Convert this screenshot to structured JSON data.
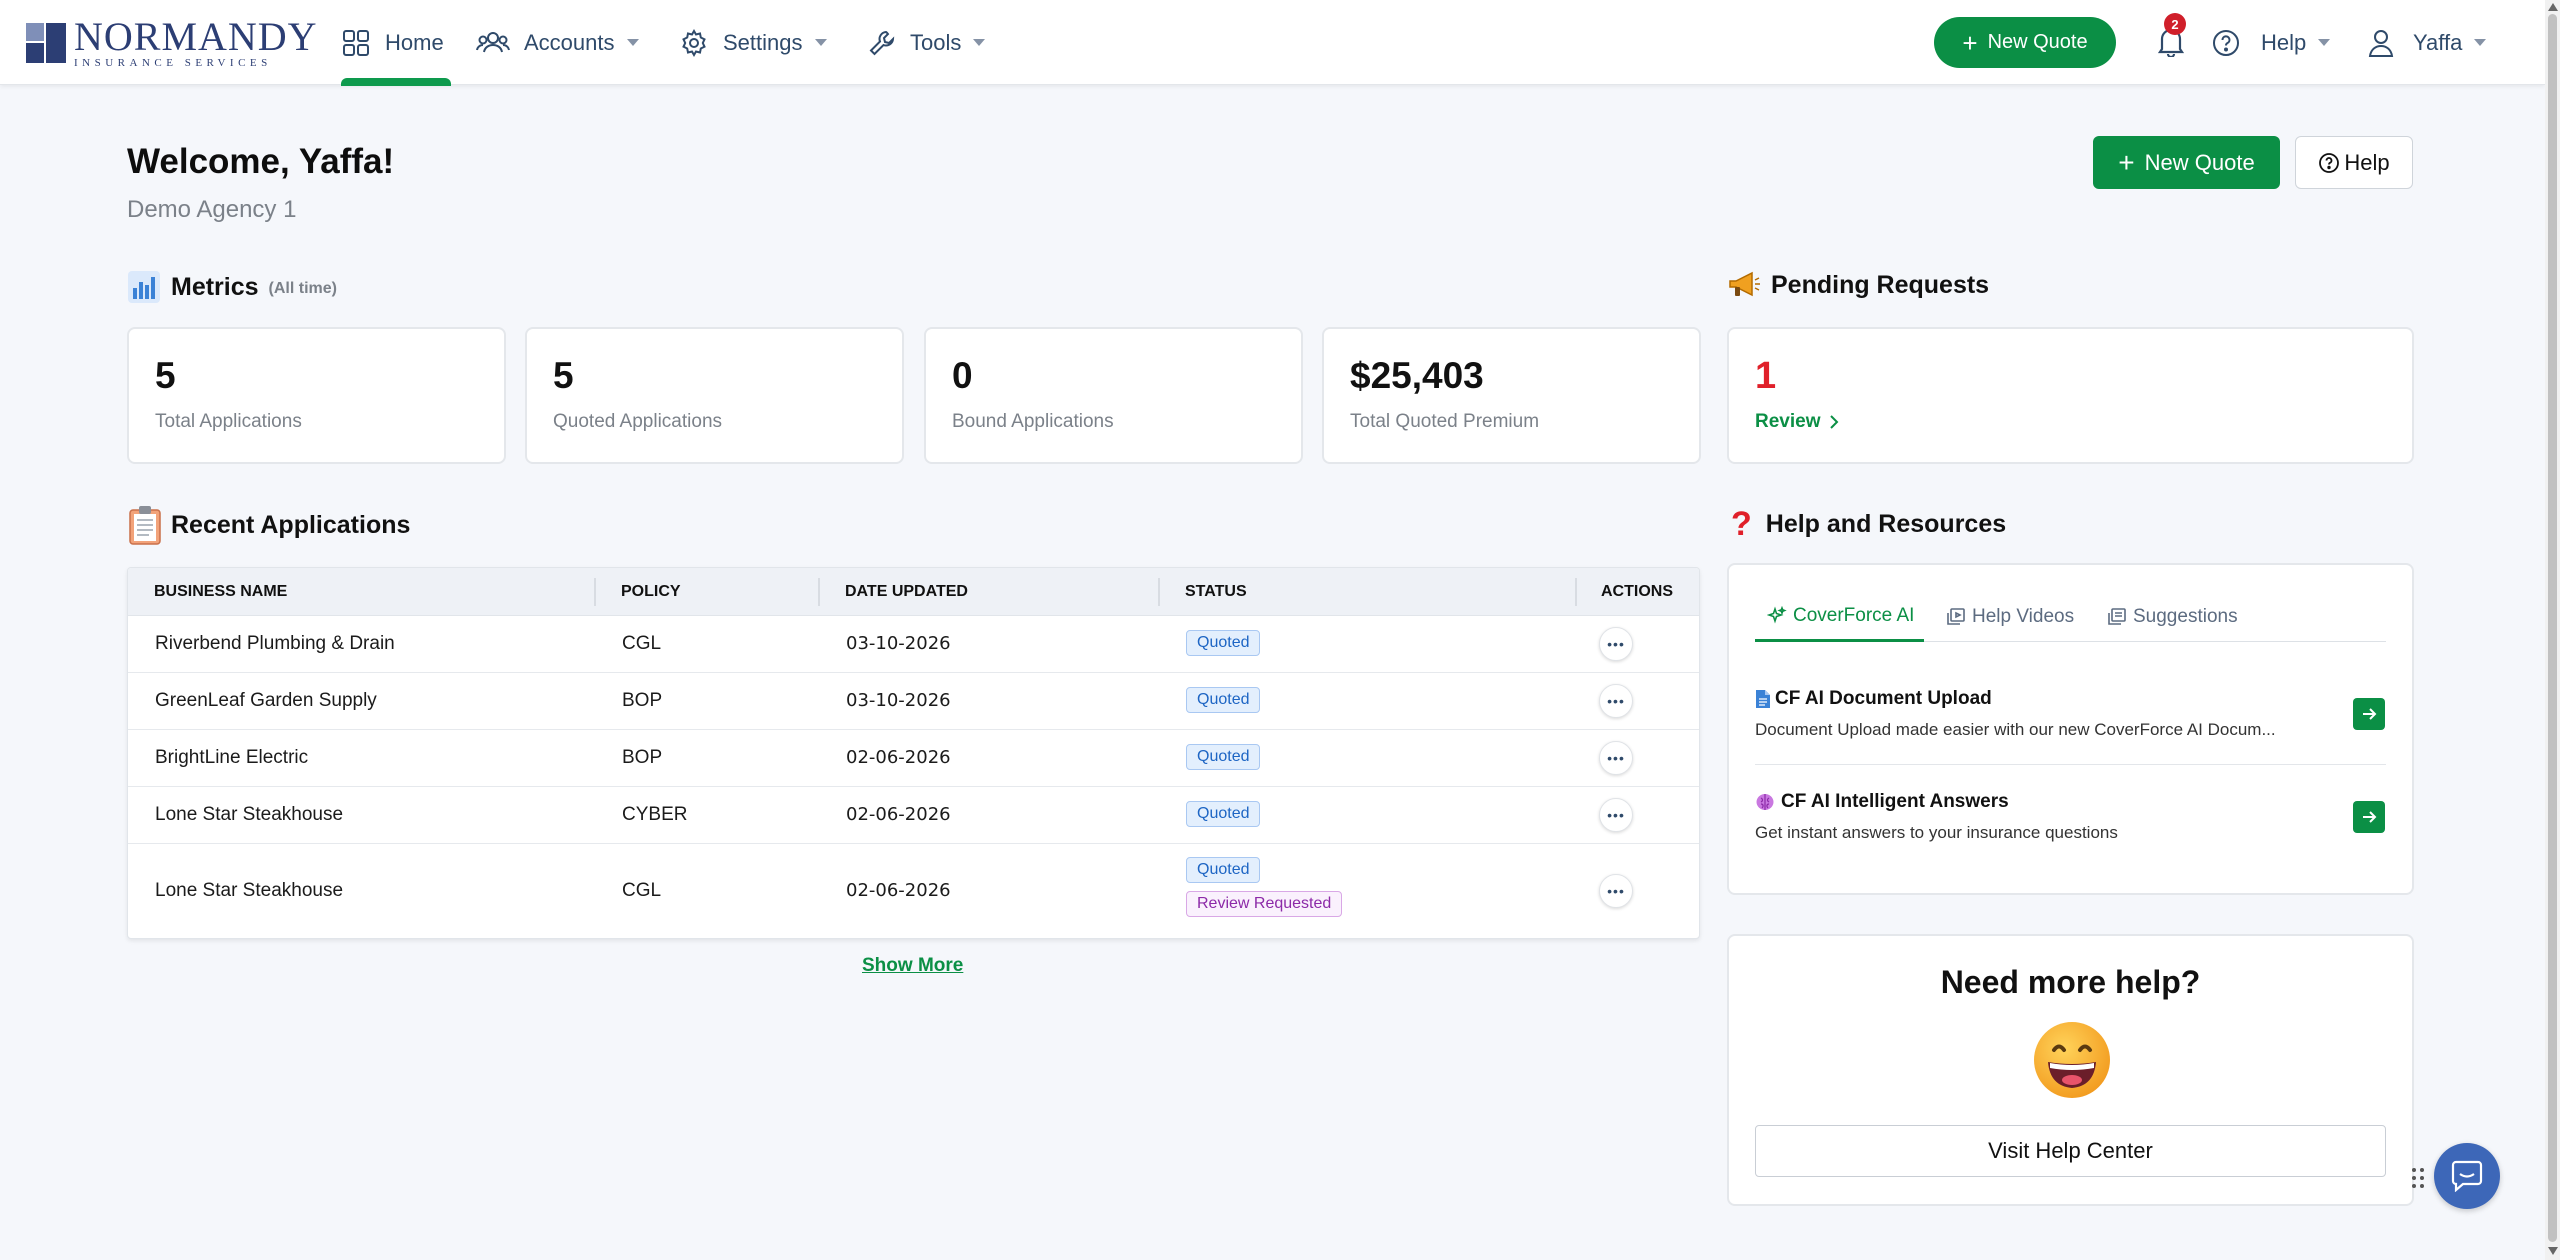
{
  "brand": {
    "name": "NORMANDY",
    "subtitle": "INSURANCE SERVICES",
    "primary_color": "#0b8f45",
    "navy": "#2c3e74"
  },
  "nav": {
    "items": [
      {
        "label": "Home",
        "icon": "grid-icon"
      },
      {
        "label": "Accounts",
        "icon": "users-icon"
      },
      {
        "label": "Settings",
        "icon": "gear-icon"
      },
      {
        "label": "Tools",
        "icon": "wrench-icon"
      }
    ],
    "new_quote": "New Quote",
    "notifications_count": "2",
    "help": "Help",
    "user": "Yaffa"
  },
  "header": {
    "welcome": "Welcome, Yaffa!",
    "agency": "Demo Agency 1",
    "new_quote": "New Quote",
    "help": "Help"
  },
  "metrics": {
    "title": "Metrics",
    "subtitle": "(All time)",
    "cards": [
      {
        "value": "5",
        "label": "Total Applications"
      },
      {
        "value": "5",
        "label": "Quoted Applications"
      },
      {
        "value": "0",
        "label": "Bound Applications"
      },
      {
        "value": "$25,403",
        "label": "Total Quoted Premium"
      }
    ]
  },
  "pending": {
    "title": "Pending Requests",
    "count": "1",
    "link": "Review"
  },
  "recent": {
    "title": "Recent Applications",
    "columns": [
      "BUSINESS NAME",
      "POLICY",
      "DATE UPDATED",
      "STATUS",
      "ACTIONS"
    ],
    "rows": [
      {
        "business": "Riverbend Plumbing & Drain",
        "policy": "CGL",
        "date": "03-10-2026",
        "status": [
          "Quoted"
        ]
      },
      {
        "business": "GreenLeaf Garden Supply",
        "policy": "BOP",
        "date": "03-10-2026",
        "status": [
          "Quoted"
        ]
      },
      {
        "business": "BrightLine Electric",
        "policy": "BOP",
        "date": "02-06-2026",
        "status": [
          "Quoted"
        ]
      },
      {
        "business": "Lone Star Steakhouse",
        "policy": "CYBER",
        "date": "02-06-2026",
        "status": [
          "Quoted"
        ]
      },
      {
        "business": "Lone Star Steakhouse",
        "policy": "CGL",
        "date": "02-06-2026",
        "status": [
          "Quoted",
          "Review Requested"
        ]
      }
    ],
    "show_more": "Show More"
  },
  "resources": {
    "title": "Help and Resources",
    "tabs": [
      "CoverForce AI",
      "Help Videos",
      "Suggestions"
    ],
    "items": [
      {
        "title": "CF AI Document Upload",
        "desc": "Document Upload made easier with our new CoverForce AI Docum..."
      },
      {
        "title": "CF AI Intelligent Answers",
        "desc": "Get instant answers to your insurance questions"
      }
    ]
  },
  "more_help": {
    "title": "Need more help?",
    "button": "Visit Help Center"
  }
}
